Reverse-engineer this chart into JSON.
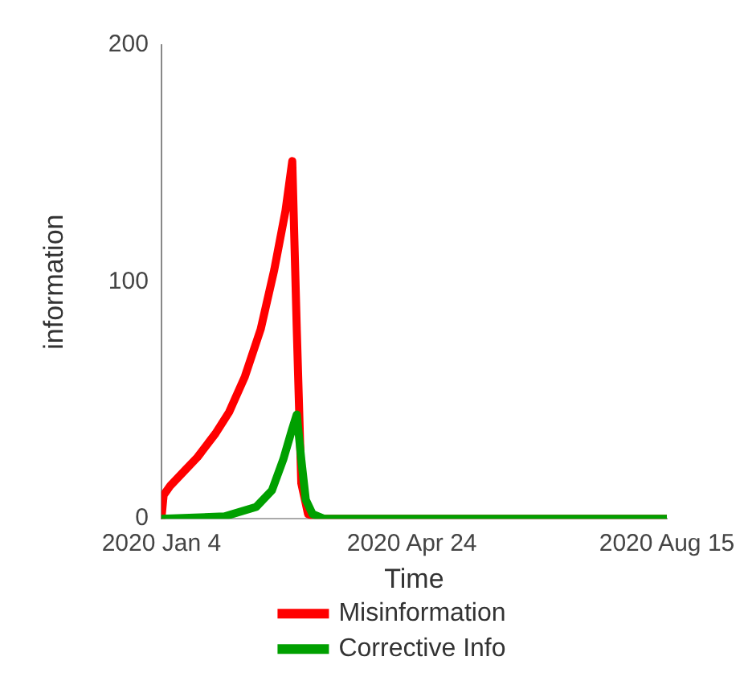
{
  "chart_data": {
    "type": "line",
    "xlabel": "Time",
    "ylabel": "information",
    "xlim": [
      "2020-01-04",
      "2020-08-15"
    ],
    "xticks": [
      {
        "value": "2020-01-04",
        "label": "2020 Jan 4"
      },
      {
        "value": "2020-04-24",
        "label": "2020 Apr 24"
      },
      {
        "value": "2020-08-15",
        "label": "2020 Aug 15"
      }
    ],
    "ylim": [
      0,
      200
    ],
    "yticks": [
      0,
      100,
      200
    ],
    "grid": false,
    "legend": "bottom",
    "marker": "none",
    "line_style": "solid",
    "series": [
      {
        "name": "Misinformation",
        "color": "#ff0000",
        "x": [
          "2020-01-04",
          "2020-01-05",
          "2020-01-08",
          "2020-01-14",
          "2020-01-20",
          "2020-01-28",
          "2020-02-03",
          "2020-02-10",
          "2020-02-17",
          "2020-02-23",
          "2020-02-28",
          "2020-03-02",
          "2020-03-04",
          "2020-03-06",
          "2020-03-09",
          "2020-03-14",
          "2020-08-15"
        ],
        "values": [
          0,
          10,
          14,
          20,
          26,
          36,
          45,
          60,
          80,
          105,
          130,
          151,
          80,
          15,
          2,
          0,
          0
        ]
      },
      {
        "name": "Corrective Info",
        "color": "#00a000",
        "x": [
          "2020-01-04",
          "2020-02-01",
          "2020-02-15",
          "2020-02-22",
          "2020-02-27",
          "2020-03-02",
          "2020-03-04",
          "2020-03-06",
          "2020-03-08",
          "2020-03-11",
          "2020-03-16",
          "2020-08-15"
        ],
        "values": [
          0,
          1,
          5,
          12,
          25,
          38,
          44,
          25,
          8,
          2,
          0,
          0
        ]
      }
    ]
  }
}
